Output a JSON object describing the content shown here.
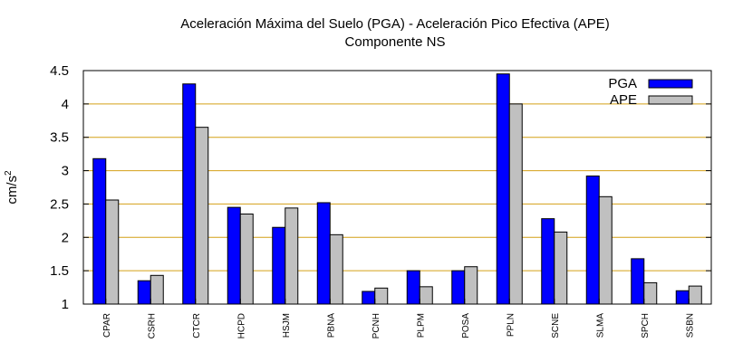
{
  "chart_data": {
    "type": "bar",
    "title": "Aceleración Máxima del Suelo (PGA) -  Aceleración Pico Efectiva (APE)",
    "subtitle": "Componente NS",
    "xlabel": "",
    "ylabel_base": "cm/s",
    "ylabel_sup": "2",
    "ylim": [
      1,
      4.5
    ],
    "yticks": [
      "1",
      "1.5",
      "2",
      "2.5",
      "3",
      "3.5",
      "4",
      "4.5"
    ],
    "ytick_values": [
      1,
      1.5,
      2,
      2.5,
      3,
      3.5,
      4,
      4.5
    ],
    "grid": "horizontal",
    "legend_position": "top-right",
    "categories": [
      "CPAR",
      "CSRH",
      "CTCR",
      "HCPD",
      "HSJM",
      "PBNA",
      "PCNH",
      "PLPM",
      "POSA",
      "PPLN",
      "SCNE",
      "SLMA",
      "SPCH",
      "SSBN"
    ],
    "series": [
      {
        "name": "PGA",
        "color": "#0000ff",
        "values": [
          3.18,
          1.35,
          4.3,
          2.45,
          2.15,
          2.52,
          1.19,
          1.5,
          1.5,
          4.45,
          2.28,
          2.92,
          1.68,
          1.2
        ]
      },
      {
        "name": "APE",
        "color": "#c0c0c0",
        "values": [
          2.56,
          1.43,
          3.65,
          2.35,
          2.44,
          2.04,
          1.24,
          1.26,
          1.56,
          4.0,
          2.08,
          2.61,
          1.32,
          1.27
        ]
      }
    ]
  }
}
